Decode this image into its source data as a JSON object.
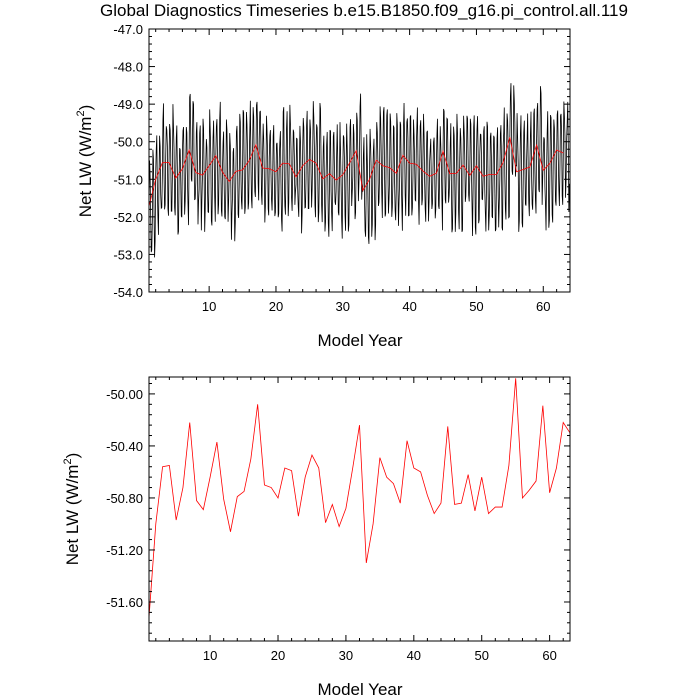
{
  "title": "Global Diagnostics Timeseries b.e15.B1850.f09_g16.pi_control.all.119",
  "colors": {
    "monthly": "#000000",
    "annual": "#ff0000"
  },
  "chart_data": [
    {
      "type": "line",
      "title": "Global Diagnostics Timeseries b.e15.B1850.f09_g16.pi_control.all.119",
      "xlabel": "Model Year",
      "ylabel": "Net LW (W/m²)",
      "ylabel_parts": {
        "main": "Net LW (W/m",
        "sup": "2",
        "close": ")"
      },
      "xlim": [
        1,
        64
      ],
      "ylim": [
        -54.0,
        -47.0
      ],
      "x_ticks": [
        "10",
        "20",
        "30",
        "40",
        "50",
        "60"
      ],
      "y_ticks": [
        "-47.0",
        "-48.0",
        "-49.0",
        "-50.0",
        "-51.0",
        "-52.0",
        "-53.0",
        "-54.0"
      ],
      "series": [
        {
          "color": "#000000",
          "x_start": 1.0,
          "x_step": 0.08333,
          "amplitude": 1.35,
          "values": []
        },
        {
          "color": "#ff0000",
          "x": [
            1,
            2,
            3,
            4,
            5,
            6,
            7,
            8,
            9,
            10,
            11,
            12,
            13,
            14,
            15,
            16,
            17,
            18,
            19,
            20,
            21,
            22,
            23,
            24,
            25,
            26,
            27,
            28,
            29,
            30,
            31,
            32,
            33,
            34,
            35,
            36,
            37,
            38,
            39,
            40,
            41,
            42,
            43,
            44,
            45,
            46,
            47,
            48,
            49,
            50,
            51,
            52,
            53,
            54,
            55,
            56,
            57,
            58,
            59,
            60,
            61,
            62,
            63
          ],
          "values": [
            -51.72,
            -51.0,
            -50.56,
            -50.55,
            -50.97,
            -50.72,
            -50.22,
            -50.82,
            -50.89,
            -50.64,
            -50.37,
            -50.81,
            -51.06,
            -50.79,
            -50.75,
            -50.5,
            -50.08,
            -50.7,
            -50.72,
            -50.8,
            -50.57,
            -50.59,
            -50.94,
            -50.64,
            -50.47,
            -50.57,
            -50.99,
            -50.85,
            -51.02,
            -50.88,
            -50.57,
            -50.24,
            -51.3,
            -51.0,
            -50.49,
            -50.64,
            -50.69,
            -50.84,
            -50.36,
            -50.57,
            -50.6,
            -50.78,
            -50.92,
            -50.84,
            -50.25,
            -50.85,
            -50.84,
            -50.62,
            -50.9,
            -50.64,
            -50.92,
            -50.87,
            -50.87,
            -50.55,
            -49.88,
            -50.8,
            -50.74,
            -50.67,
            -50.09,
            -50.76,
            -50.57,
            -50.22,
            -50.3
          ]
        }
      ]
    },
    {
      "type": "line",
      "xlabel": "Model Year",
      "ylabel": "Net LW (W/m²)",
      "ylabel_parts": {
        "main": "Net LW (W/m",
        "sup": "2",
        "close": ")"
      },
      "xlim": [
        1,
        63
      ],
      "ylim": [
        -51.9,
        -49.87
      ],
      "x_ticks": [
        "10",
        "20",
        "30",
        "40",
        "50",
        "60"
      ],
      "y_ticks": [
        "-50.00",
        "-50.40",
        "-50.80",
        "-51.20",
        "-51.60"
      ],
      "series": [
        {
          "color": "#ff0000",
          "x": [
            1,
            2,
            3,
            4,
            5,
            6,
            7,
            8,
            9,
            10,
            11,
            12,
            13,
            14,
            15,
            16,
            17,
            18,
            19,
            20,
            21,
            22,
            23,
            24,
            25,
            26,
            27,
            28,
            29,
            30,
            31,
            32,
            33,
            34,
            35,
            36,
            37,
            38,
            39,
            40,
            41,
            42,
            43,
            44,
            45,
            46,
            47,
            48,
            49,
            50,
            51,
            52,
            53,
            54,
            55,
            56,
            57,
            58,
            59,
            60,
            61,
            62,
            63
          ],
          "values": [
            -51.72,
            -51.0,
            -50.56,
            -50.55,
            -50.97,
            -50.72,
            -50.22,
            -50.82,
            -50.89,
            -50.64,
            -50.37,
            -50.81,
            -51.06,
            -50.79,
            -50.75,
            -50.5,
            -50.08,
            -50.7,
            -50.72,
            -50.8,
            -50.57,
            -50.59,
            -50.94,
            -50.64,
            -50.47,
            -50.57,
            -50.99,
            -50.85,
            -51.02,
            -50.88,
            -50.57,
            -50.24,
            -51.3,
            -51.0,
            -50.49,
            -50.64,
            -50.69,
            -50.84,
            -50.36,
            -50.57,
            -50.6,
            -50.78,
            -50.92,
            -50.84,
            -50.25,
            -50.85,
            -50.84,
            -50.62,
            -50.9,
            -50.64,
            -50.92,
            -50.87,
            -50.87,
            -50.55,
            -49.88,
            -50.8,
            -50.74,
            -50.67,
            -50.09,
            -50.76,
            -50.57,
            -50.22,
            -50.3
          ]
        }
      ]
    }
  ]
}
